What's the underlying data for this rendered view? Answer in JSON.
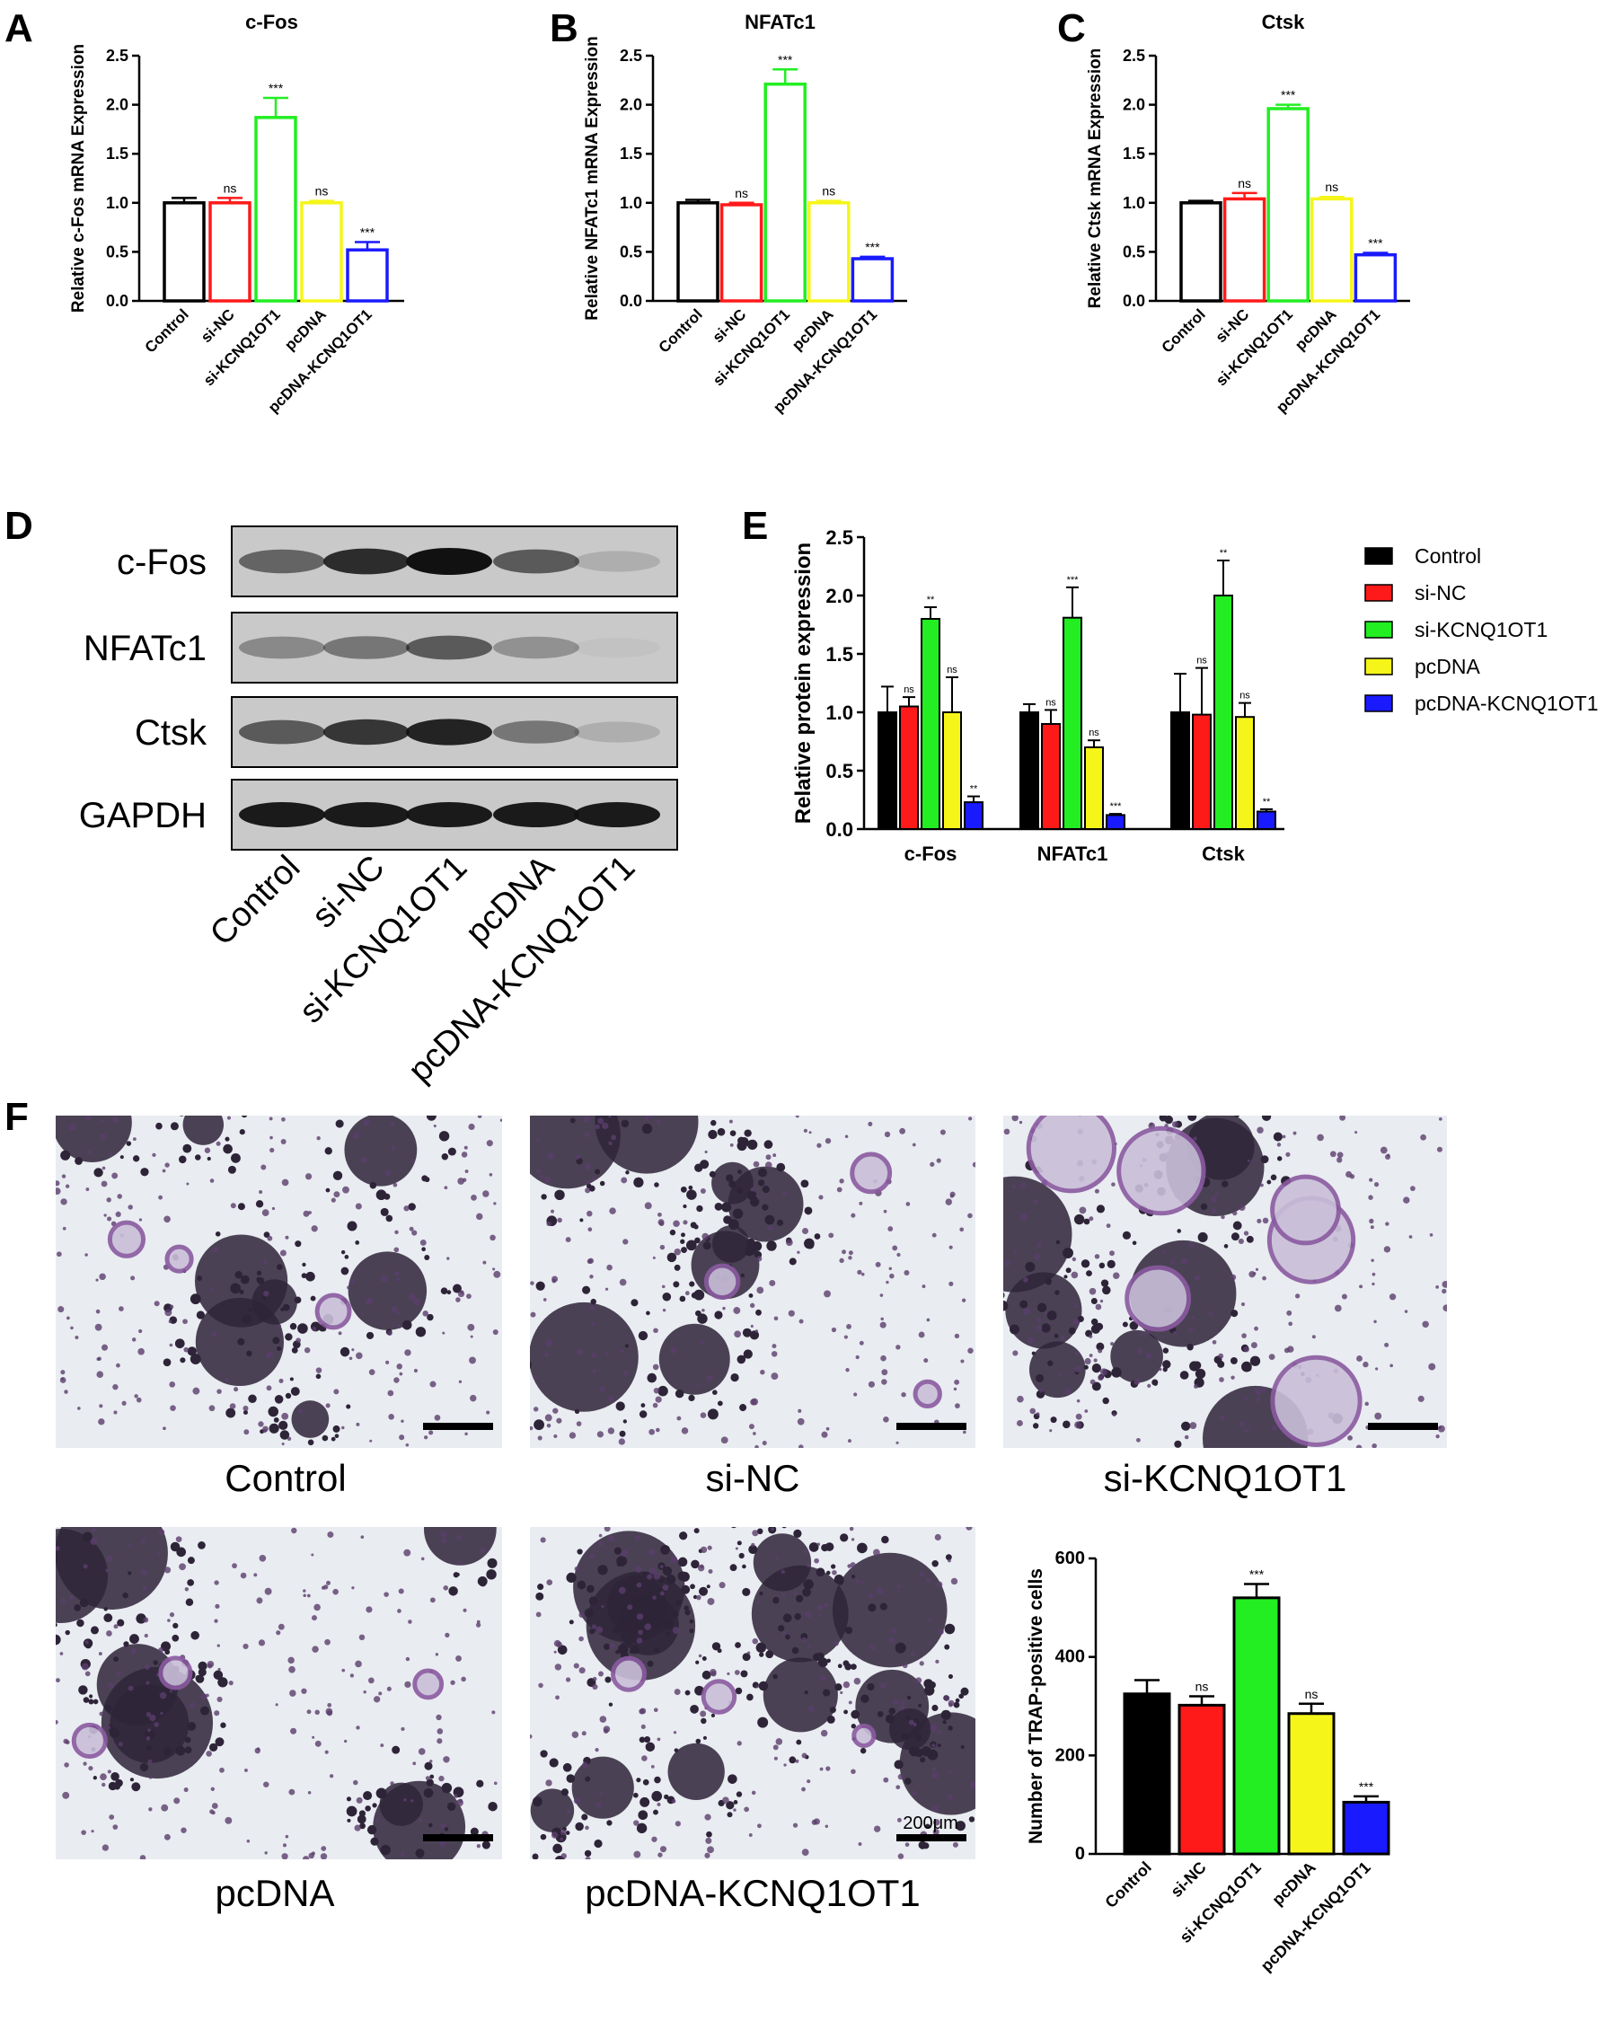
{
  "panels": {
    "A": "A",
    "B": "B",
    "C": "C",
    "D": "D",
    "E": "E",
    "F": "F"
  },
  "colors": {
    "Control": "#000000",
    "si-NC": "#ff1a1a",
    "si-KCNQ1OT1": "#22ee22",
    "pcDNA": "#f5f51a",
    "pcDNA-KCNQ1OT1": "#1a1aff",
    "stain_dark": "#2e2438",
    "stain_mid": "#5a3d6b",
    "stain_purple": "#8a5aa0",
    "background_micro": "#e9ecf1"
  },
  "western": {
    "bands": [
      "c-Fos",
      "NFATc1",
      "Ctsk",
      "GAPDH"
    ],
    "lanes": [
      "Control",
      "si-NC",
      "si-KCNQ1OT1",
      "pcDNA",
      "pcDNA-KCNQ1OT1"
    ]
  },
  "micrographs": {
    "labels": [
      "Control",
      "si-NC",
      "si-KCNQ1OT1",
      "pcDNA",
      "pcDNA-KCNQ1OT1"
    ],
    "scale_label": "200μm"
  },
  "chart_data": [
    {
      "id": "A",
      "type": "bar",
      "title": "c-Fos",
      "ylabel": "Relative c-Fos mRNA Expression",
      "xlabel": "",
      "ylim": [
        0,
        2.5
      ],
      "yticks": [
        "0.0",
        "0.5",
        "1.0",
        "1.5",
        "2.0",
        "2.5"
      ],
      "categories": [
        "Control",
        "si-NC",
        "si-KCNQ1OT1",
        "pcDNA",
        "pcDNA-KCNQ1OT1"
      ],
      "values": [
        1.0,
        1.0,
        1.87,
        1.0,
        0.52
      ],
      "errors": [
        0.05,
        0.05,
        0.2,
        0.02,
        0.08
      ],
      "annotations": [
        "",
        "ns",
        "***",
        "ns",
        "***"
      ],
      "style": "hollow",
      "grid": false
    },
    {
      "id": "B",
      "type": "bar",
      "title": "NFATc1",
      "ylabel": "Relative NFATc1 mRNA Expression",
      "xlabel": "",
      "ylim": [
        0,
        2.5
      ],
      "yticks": [
        "0.0",
        "0.5",
        "1.0",
        "1.5",
        "2.0",
        "2.5"
      ],
      "categories": [
        "Control",
        "si-NC",
        "si-KCNQ1OT1",
        "pcDNA",
        "pcDNA-KCNQ1OT1"
      ],
      "values": [
        1.0,
        0.98,
        2.21,
        1.0,
        0.43
      ],
      "errors": [
        0.03,
        0.02,
        0.15,
        0.02,
        0.02
      ],
      "annotations": [
        "",
        "ns",
        "***",
        "ns",
        "***"
      ],
      "style": "hollow",
      "grid": false
    },
    {
      "id": "C",
      "type": "bar",
      "title": "Ctsk",
      "ylabel": "Relative Ctsk mRNA Expression",
      "xlabel": "",
      "ylim": [
        0,
        2.5
      ],
      "yticks": [
        "0.0",
        "0.5",
        "1.0",
        "1.5",
        "2.0",
        "2.5"
      ],
      "categories": [
        "Control",
        "si-NC",
        "si-KCNQ1OT1",
        "pcDNA",
        "pcDNA-KCNQ1OT1"
      ],
      "values": [
        1.0,
        1.04,
        1.96,
        1.04,
        0.47
      ],
      "errors": [
        0.02,
        0.06,
        0.04,
        0.02,
        0.02
      ],
      "annotations": [
        "",
        "ns",
        "***",
        "ns",
        "***"
      ],
      "style": "hollow",
      "grid": false
    },
    {
      "id": "E",
      "type": "bar",
      "title": "",
      "ylabel": "Relative protein expression",
      "xlabel": "",
      "ylim": [
        0,
        2.5
      ],
      "yticks": [
        "0.0",
        "0.5",
        "1.0",
        "1.5",
        "2.0",
        "2.5"
      ],
      "categories": [
        "c-Fos",
        "NFATc1",
        "Ctsk"
      ],
      "series": [
        {
          "name": "Control",
          "values": [
            1.0,
            1.0,
            1.0
          ],
          "errors": [
            0.22,
            0.07,
            0.33
          ],
          "annotations": [
            "",
            "",
            ""
          ]
        },
        {
          "name": "si-NC",
          "values": [
            1.05,
            0.9,
            0.98
          ],
          "errors": [
            0.08,
            0.12,
            0.4
          ],
          "annotations": [
            "ns",
            "ns",
            "ns"
          ]
        },
        {
          "name": "si-KCNQ1OT1",
          "values": [
            1.8,
            1.81,
            2.0
          ],
          "errors": [
            0.1,
            0.26,
            0.3
          ],
          "annotations": [
            "**",
            "***",
            "**"
          ]
        },
        {
          "name": "pcDNA",
          "values": [
            1.0,
            0.7,
            0.96
          ],
          "errors": [
            0.3,
            0.06,
            0.12
          ],
          "annotations": [
            "ns",
            "ns",
            "ns"
          ]
        },
        {
          "name": "pcDNA-KCNQ1OT1",
          "values": [
            0.23,
            0.12,
            0.15
          ],
          "errors": [
            0.05,
            0.01,
            0.02
          ],
          "annotations": [
            "**",
            "***",
            "**"
          ]
        }
      ],
      "legend": "right",
      "style": "filled",
      "grid": false
    },
    {
      "id": "F",
      "type": "bar",
      "title": "",
      "ylabel": "Number of TRAP-positive cells",
      "xlabel": "",
      "ylim": [
        0,
        600
      ],
      "yticks": [
        "0",
        "200",
        "400",
        "600"
      ],
      "categories": [
        "Control",
        "si-NC",
        "si-KCNQ1OT1",
        "pcDNA",
        "pcDNA-KCNQ1OT1"
      ],
      "values": [
        325,
        302,
        520,
        285,
        105
      ],
      "errors": [
        28,
        18,
        28,
        20,
        12
      ],
      "annotations": [
        "",
        "ns",
        "***",
        "ns",
        "***"
      ],
      "style": "filled",
      "grid": false
    }
  ]
}
